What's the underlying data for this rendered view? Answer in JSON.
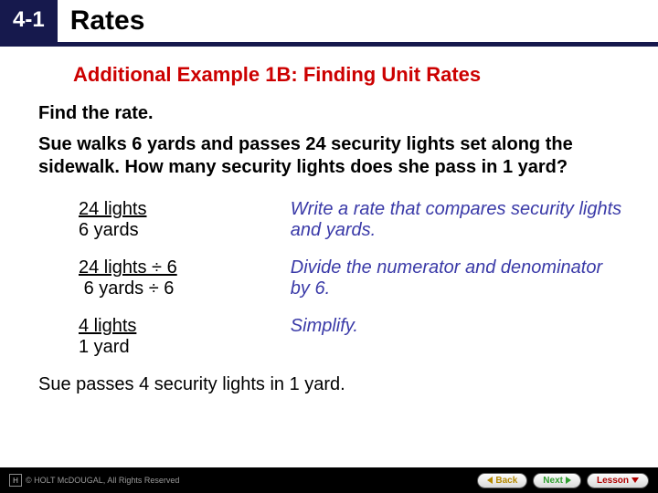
{
  "header": {
    "chapter_number": "4-1",
    "page_title": "Rates",
    "chapter_box_bg": "#16194d",
    "chapter_box_text_color": "#ffffff",
    "underline_color": "#16194d"
  },
  "content": {
    "example_heading": "Additional Example 1B: Finding Unit Rates",
    "example_heading_color": "#cc0000",
    "instruction": "Find the rate.",
    "problem": "Sue walks 6 yards and passes 24 security lights set along the sidewalk. How many security lights does she pass in 1 yard?",
    "steps": [
      {
        "math_top": "24 lights",
        "math_bottom": "6 yards",
        "explanation": "Write a rate that compares security lights and yards."
      },
      {
        "math_top": "24 lights ÷ 6",
        "math_bottom": "6 yards ÷ 6",
        "explanation": "Divide the numerator and denominator by 6."
      },
      {
        "math_top": "4 lights",
        "math_bottom": "1 yard",
        "explanation": "Simplify."
      }
    ],
    "conclusion": "Sue passes 4 security lights in 1 yard.",
    "explanation_color": "#3a3aa8",
    "text_color": "#000000",
    "body_fontsize_pt": 15
  },
  "footer": {
    "copyright": "© HOLT McDOUGAL, All Rights Reserved",
    "copyright_color": "#9a9a9a",
    "background_color": "#000000",
    "buttons": {
      "back": "Back",
      "next": "Next",
      "lesson": "Lesson"
    },
    "button_colors": {
      "back": "#b58900",
      "next": "#2f9e2f",
      "lesson": "#b00000"
    }
  }
}
